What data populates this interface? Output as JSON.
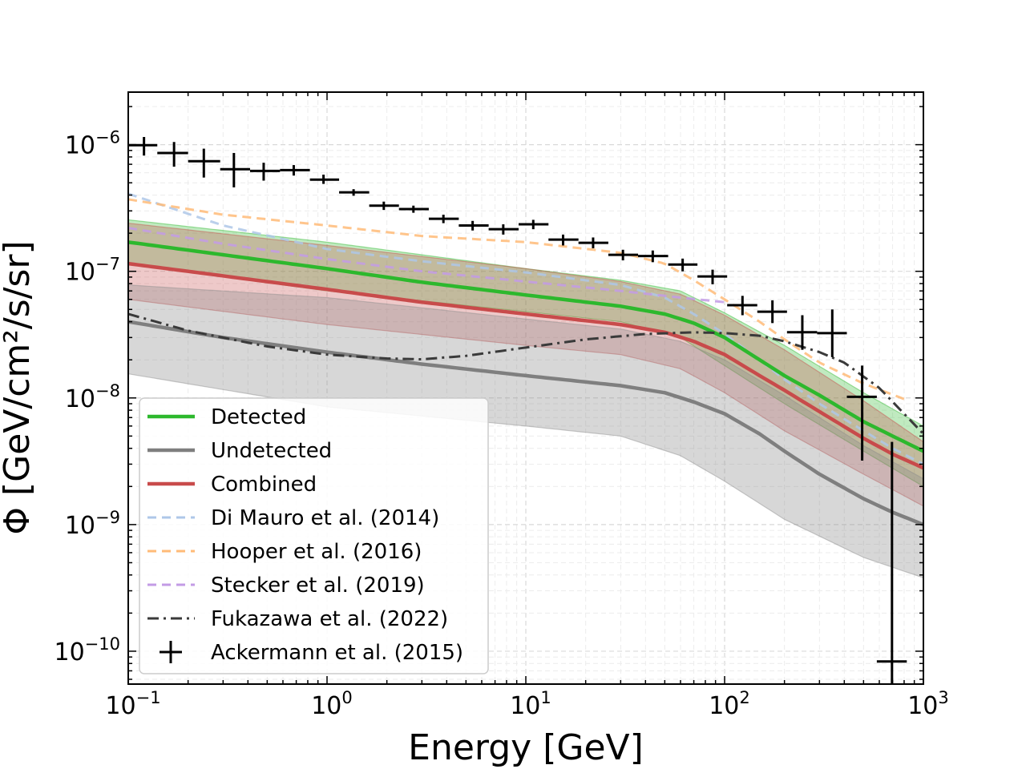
{
  "chart_data": {
    "type": "line",
    "xscale": "log",
    "yscale": "log",
    "xlabel": "Energy [GeV]",
    "ylabel": "Φ [GeV/cm²/s/sr]",
    "xlim": [
      0.1,
      1000
    ],
    "ylim": [
      5.5e-11,
      2.6e-06
    ],
    "grid": true,
    "legend_position": "lower-left",
    "x_ticks": [
      {
        "base": "10",
        "exp": "−1",
        "value": 0.1
      },
      {
        "base": "10",
        "exp": "0",
        "value": 1
      },
      {
        "base": "10",
        "exp": "1",
        "value": 10
      },
      {
        "base": "10",
        "exp": "2",
        "value": 100
      },
      {
        "base": "10",
        "exp": "3",
        "value": 1000
      }
    ],
    "y_ticks": [
      {
        "base": "10",
        "exp": "−10",
        "value": 1e-10
      },
      {
        "base": "10",
        "exp": "−9",
        "value": 1e-09
      },
      {
        "base": "10",
        "exp": "−8",
        "value": 1e-08
      },
      {
        "base": "10",
        "exp": "−7",
        "value": 1e-07
      },
      {
        "base": "10",
        "exp": "−6",
        "value": 1e-06
      }
    ],
    "bands": [
      {
        "name": "Detected band",
        "color": "#2db82d",
        "opacity": 0.3,
        "x": [
          0.1,
          1,
          10,
          30,
          60,
          100,
          200,
          500,
          1000
        ],
        "lower": [
          1.15e-07,
          7e-08,
          4.8e-08,
          4e-08,
          3e-08,
          1.8e-08,
          9e-09,
          3.8e-09,
          2e-09
        ],
        "upper": [
          2.55e-07,
          1.7e-07,
          1.05e-07,
          8.5e-08,
          7e-08,
          4.7e-08,
          2.6e-08,
          1.1e-08,
          6e-09
        ]
      },
      {
        "name": "Combined band",
        "color": "#c84b4b",
        "opacity": 0.3,
        "x": [
          0.1,
          1,
          10,
          30,
          60,
          100,
          200,
          500,
          1000
        ],
        "lower": [
          6e-08,
          3.8e-08,
          2.6e-08,
          2.2e-08,
          1.7e-08,
          1.1e-08,
          5.5e-09,
          2.5e-09,
          1.4e-09
        ],
        "upper": [
          2.4e-07,
          1.6e-07,
          1.05e-07,
          8.3e-08,
          6.6e-08,
          4.5e-08,
          2.4e-08,
          9.5e-09,
          4.5e-09
        ]
      },
      {
        "name": "Undetected band",
        "color": "#8c8c8c",
        "opacity": 0.35,
        "x": [
          0.1,
          1,
          10,
          30,
          60,
          100,
          200,
          500,
          1000
        ],
        "lower": [
          1.55e-08,
          8.5e-09,
          6e-09,
          5e-09,
          3.5e-09,
          2.2e-09,
          1.1e-09,
          5.5e-10,
          3.8e-10
        ],
        "upper": [
          7.8e-08,
          6.2e-08,
          4.2e-08,
          3.5e-08,
          2.8e-08,
          2e-08,
          1.05e-08,
          4.2e-09,
          2.3e-09
        ]
      }
    ],
    "series": [
      {
        "name": "Detected",
        "label": "Detected",
        "color": "#2db82d",
        "style": "solid",
        "width": 4.5,
        "x": [
          0.1,
          0.3,
          1,
          3,
          10,
          30,
          50,
          70,
          100,
          150,
          200,
          300,
          500,
          700,
          1000
        ],
        "y": [
          1.7e-07,
          1.35e-07,
          1.05e-07,
          8.2e-08,
          6.5e-08,
          5.3e-08,
          4.6e-08,
          3.9e-08,
          3e-08,
          2e-08,
          1.5e-08,
          1.05e-08,
          6.5e-09,
          5e-09,
          3.8e-09
        ]
      },
      {
        "name": "Undetected",
        "label": "Undetected",
        "color": "#7f7f7f",
        "style": "solid",
        "width": 4.5,
        "x": [
          0.1,
          0.3,
          1,
          3,
          10,
          30,
          50,
          70,
          100,
          150,
          200,
          300,
          500,
          700,
          1000
        ],
        "y": [
          4e-08,
          3e-08,
          2.3e-08,
          1.85e-08,
          1.5e-08,
          1.25e-08,
          1.1e-08,
          9.3e-09,
          7.5e-09,
          5.2e-09,
          3.8e-09,
          2.5e-09,
          1.6e-09,
          1.25e-09,
          1e-09
        ]
      },
      {
        "name": "Combined",
        "label": "Combined",
        "color": "#c84b4b",
        "style": "solid",
        "width": 4.5,
        "x": [
          0.1,
          0.3,
          1,
          3,
          10,
          30,
          50,
          70,
          100,
          150,
          200,
          300,
          500,
          700,
          1000
        ],
        "y": [
          1.15e-07,
          9.2e-08,
          7.2e-08,
          5.7e-08,
          4.6e-08,
          3.8e-08,
          3.3e-08,
          2.8e-08,
          2.2e-08,
          1.5e-08,
          1.15e-08,
          7.8e-09,
          4.8e-09,
          3.6e-09,
          2.8e-09
        ]
      },
      {
        "name": "Di Mauro",
        "label": "Di Mauro et al. (2014)",
        "color": "#aec7e8",
        "style": "dashed",
        "width": 3,
        "x": [
          0.1,
          0.3,
          1,
          3,
          10,
          30,
          50,
          70,
          100,
          150,
          200,
          300,
          500,
          700,
          1000
        ],
        "y": [
          4.1e-07,
          2.3e-07,
          1.5e-07,
          1.2e-07,
          9.8e-08,
          7.8e-08,
          6.2e-08,
          4.6e-08,
          3.2e-08,
          2e-08,
          1.4e-08,
          9e-09,
          5.5e-09,
          4e-09,
          3e-09
        ]
      },
      {
        "name": "Hooper",
        "label": "Hooper et al. (2016)",
        "color": "#ffbb78",
        "style": "dashed",
        "width": 3,
        "x": [
          0.1,
          0.3,
          1,
          3,
          10,
          30,
          50,
          70,
          100,
          150,
          200,
          300,
          500,
          800
        ],
        "y": [
          3.7e-07,
          2.8e-07,
          2.3e-07,
          1.9e-07,
          1.7e-07,
          1.4e-07,
          1.15e-07,
          8.5e-08,
          6e-08,
          4e-08,
          2.9e-08,
          1.9e-08,
          1.3e-08,
          9.8e-09
        ]
      },
      {
        "name": "Stecker",
        "label": "Stecker et al. (2019)",
        "color": "#c39be6",
        "style": "dashed",
        "width": 3,
        "x": [
          0.1,
          0.3,
          1,
          3,
          10,
          30,
          60,
          100
        ],
        "y": [
          2.2e-07,
          1.65e-07,
          1.25e-07,
          1e-07,
          8.3e-08,
          7e-08,
          6.2e-08,
          5.7e-08
        ]
      },
      {
        "name": "Fukazawa",
        "label": "Fukazawa et al. (2022)",
        "color": "#3a3a3a",
        "style": "dashdot",
        "width": 3,
        "x": [
          0.1,
          0.2,
          0.5,
          1,
          2,
          3,
          5,
          10,
          20,
          40,
          70,
          100,
          150,
          200,
          300,
          400,
          600,
          800,
          1000
        ],
        "y": [
          4.6e-08,
          3.4e-08,
          2.55e-08,
          2.2e-08,
          2.05e-08,
          2.02e-08,
          2.15e-08,
          2.5e-08,
          2.9e-08,
          3.2e-08,
          3.3e-08,
          3.25e-08,
          3.1e-08,
          2.8e-08,
          2.3e-08,
          1.9e-08,
          1.2e-08,
          7.5e-09,
          5.2e-09
        ]
      }
    ],
    "points": {
      "name": "Ackermann et al. (2015)",
      "label": "Ackermann et al. (2015)",
      "color": "#000000",
      "marker": "+",
      "data": [
        {
          "x": 0.12,
          "y": 9.9e-07,
          "xerr": [
            0.1,
            0.14
          ],
          "yerr": [
            8.2e-07,
            1.15e-06
          ]
        },
        {
          "x": 0.17,
          "y": 8.6e-07,
          "xerr": [
            0.14,
            0.2
          ],
          "yerr": [
            6.7e-07,
            1.05e-06
          ]
        },
        {
          "x": 0.24,
          "y": 7.4e-07,
          "xerr": [
            0.2,
            0.29
          ],
          "yerr": [
            5.5e-07,
            9.3e-07
          ]
        },
        {
          "x": 0.34,
          "y": 6.4e-07,
          "xerr": [
            0.29,
            0.41
          ],
          "yerr": [
            4.6e-07,
            8.6e-07
          ]
        },
        {
          "x": 0.48,
          "y": 6.2e-07,
          "xerr": [
            0.41,
            0.58
          ],
          "yerr": [
            5.2e-07,
            7.2e-07
          ]
        },
        {
          "x": 0.68,
          "y": 6.3e-07,
          "xerr": [
            0.58,
            0.82
          ],
          "yerr": [
            5.7e-07,
            6.9e-07
          ]
        },
        {
          "x": 0.96,
          "y": 5.3e-07,
          "xerr": [
            0.82,
            1.15
          ],
          "yerr": [
            4.9e-07,
            5.8e-07
          ]
        },
        {
          "x": 1.36,
          "y": 4.2e-07,
          "xerr": [
            1.15,
            1.63
          ],
          "yerr": [
            3.95e-07,
            4.45e-07
          ]
        },
        {
          "x": 1.93,
          "y": 3.3e-07,
          "xerr": [
            1.63,
            2.3
          ],
          "yerr": [
            3.05e-07,
            3.55e-07
          ]
        },
        {
          "x": 2.72,
          "y": 3.1e-07,
          "xerr": [
            2.3,
            3.25
          ],
          "yerr": [
            2.9e-07,
            3.3e-07
          ]
        },
        {
          "x": 3.85,
          "y": 2.6e-07,
          "xerr": [
            3.25,
            4.6
          ],
          "yerr": [
            2.4e-07,
            2.8e-07
          ]
        },
        {
          "x": 5.4,
          "y": 2.3e-07,
          "xerr": [
            4.6,
            6.5
          ],
          "yerr": [
            2.1e-07,
            2.5e-07
          ]
        },
        {
          "x": 7.7,
          "y": 2.15e-07,
          "xerr": [
            6.5,
            9.2
          ],
          "yerr": [
            1.95e-07,
            2.35e-07
          ]
        },
        {
          "x": 10.9,
          "y": 2.35e-07,
          "xerr": [
            9.2,
            13
          ],
          "yerr": [
            2.15e-07,
            2.55e-07
          ]
        },
        {
          "x": 15.4,
          "y": 1.78e-07,
          "xerr": [
            13,
            18.4
          ],
          "yerr": [
            1.6e-07,
            1.95e-07
          ]
        },
        {
          "x": 21.8,
          "y": 1.68e-07,
          "xerr": [
            18.4,
            26
          ],
          "yerr": [
            1.52e-07,
            1.85e-07
          ]
        },
        {
          "x": 30.8,
          "y": 1.35e-07,
          "xerr": [
            26,
            36.7
          ],
          "yerr": [
            1.22e-07,
            1.48e-07
          ]
        },
        {
          "x": 43.5,
          "y": 1.32e-07,
          "xerr": [
            36.7,
            52
          ],
          "yerr": [
            1.18e-07,
            1.46e-07
          ]
        },
        {
          "x": 61.5,
          "y": 1.13e-07,
          "xerr": [
            52,
            73
          ],
          "yerr": [
            1e-07,
            1.26e-07
          ]
        },
        {
          "x": 87,
          "y": 9.1e-08,
          "xerr": [
            73,
            103
          ],
          "yerr": [
            7.9e-08,
            1.03e-07
          ]
        },
        {
          "x": 123,
          "y": 5.4e-08,
          "xerr": [
            103,
            146
          ],
          "yerr": [
            4.5e-08,
            6.4e-08
          ]
        },
        {
          "x": 174,
          "y": 4.8e-08,
          "xerr": [
            146,
            206
          ],
          "yerr": [
            3.9e-08,
            5.9e-08
          ]
        },
        {
          "x": 246,
          "y": 3.3e-08,
          "xerr": [
            206,
            292
          ],
          "yerr": [
            2.4e-08,
            4.5e-08
          ]
        },
        {
          "x": 348,
          "y": 3.25e-08,
          "xerr": [
            292,
            412
          ],
          "yerr": [
            2.1e-08,
            5e-08
          ]
        },
        {
          "x": 492,
          "y": 1.02e-08,
          "xerr": [
            412,
            583
          ],
          "yerr": [
            3.2e-09,
            1.8e-08
          ]
        },
        {
          "x": 695,
          "y": 8.3e-11,
          "xerr": [
            583,
            825
          ],
          "yerr": [
            5.5e-11,
            4.5e-09
          ]
        }
      ]
    },
    "legend_order": [
      "Detected",
      "Undetected",
      "Combined",
      "Di Mauro",
      "Hooper",
      "Stecker",
      "Fukazawa",
      "Ackermann"
    ]
  }
}
